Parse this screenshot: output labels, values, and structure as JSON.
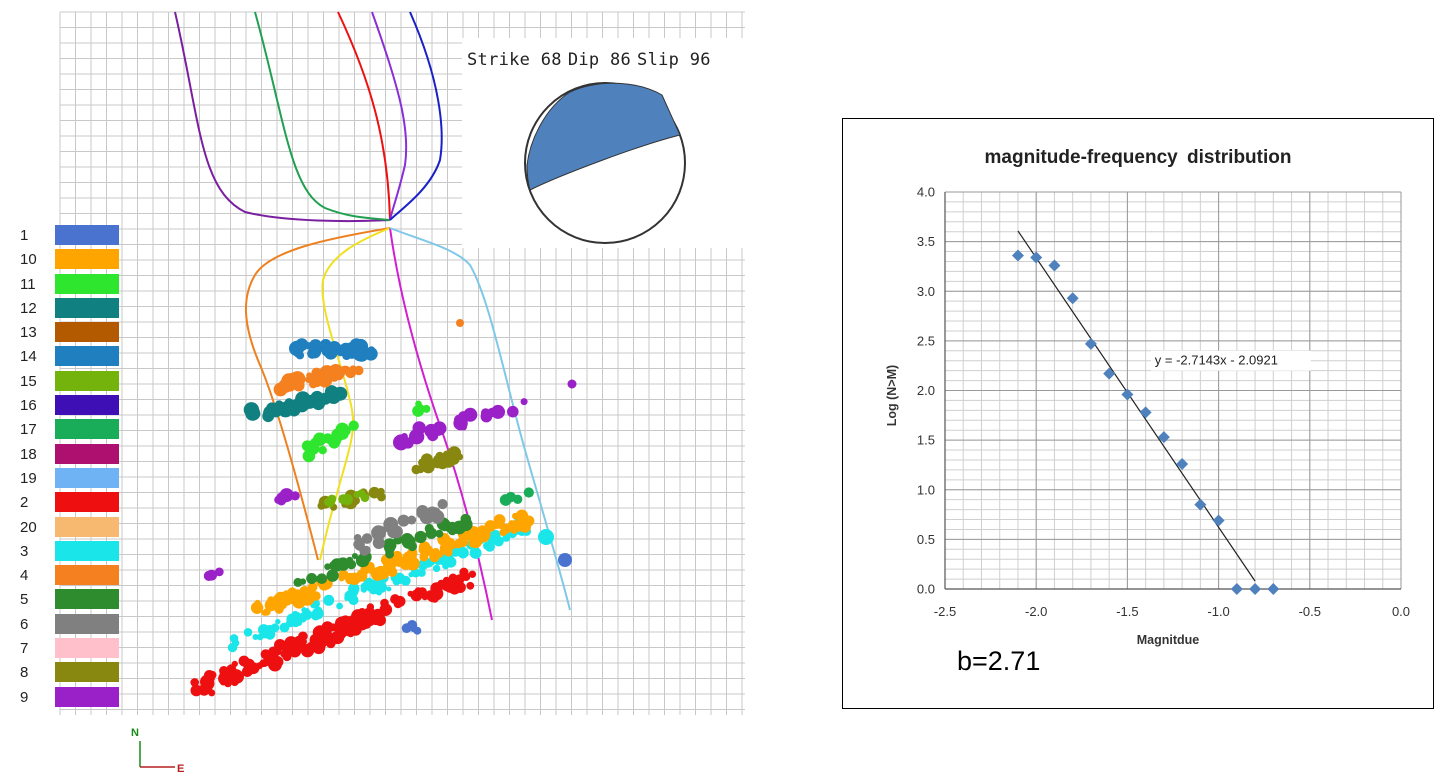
{
  "focal_mechanism": {
    "strike_label": "Strike 68",
    "dip_label": "Dip 86",
    "slip_label": "Slip 96"
  },
  "stage_legend": [
    {
      "label": "1",
      "color": "#4a72cf"
    },
    {
      "label": "10",
      "color": "#ffa500"
    },
    {
      "label": "11",
      "color": "#2ee62e"
    },
    {
      "label": "12",
      "color": "#108080"
    },
    {
      "label": "13",
      "color": "#b35900"
    },
    {
      "label": "14",
      "color": "#1f7fbf"
    },
    {
      "label": "15",
      "color": "#73b30b"
    },
    {
      "label": "16",
      "color": "#3d0fb5"
    },
    {
      "label": "17",
      "color": "#1aad59"
    },
    {
      "label": "18",
      "color": "#ad106e"
    },
    {
      "label": "19",
      "color": "#70b3f5"
    },
    {
      "label": "2",
      "color": "#ee1010"
    },
    {
      "label": "20",
      "color": "#f7b870"
    },
    {
      "label": "3",
      "color": "#1ae6ea"
    },
    {
      "label": "4",
      "color": "#f5801f"
    },
    {
      "label": "5",
      "color": "#2e8b2e"
    },
    {
      "label": "6",
      "color": "#808080"
    },
    {
      "label": "7",
      "color": "#ffc0cb"
    },
    {
      "label": "8",
      "color": "#888810"
    },
    {
      "label": "9",
      "color": "#9a20c8"
    }
  ],
  "compass": {
    "north": "N",
    "east": "E"
  },
  "chart_data": {
    "type": "scatter",
    "title": "magnitude-frequency  distribution",
    "xlabel": "Magnitdue",
    "ylabel": "Log (N>M)",
    "xlim": [
      -2.5,
      0.0
    ],
    "ylim": [
      0.0,
      4.0
    ],
    "x_ticks": [
      "-2.5",
      "-2.0",
      "-1.5",
      "-1.0",
      "-0.5",
      "0.0"
    ],
    "y_ticks": [
      "0.0",
      "0.5",
      "1.0",
      "1.5",
      "2.0",
      "2.5",
      "3.0",
      "3.5",
      "4.0"
    ],
    "grid": true,
    "marker": "diamond",
    "marker_color": "#4f81bd",
    "points": [
      {
        "x": -2.1,
        "y": 3.36
      },
      {
        "x": -2.0,
        "y": 3.34
      },
      {
        "x": -1.9,
        "y": 3.26
      },
      {
        "x": -1.8,
        "y": 2.93
      },
      {
        "x": -1.7,
        "y": 2.47
      },
      {
        "x": -1.6,
        "y": 2.17
      },
      {
        "x": -1.5,
        "y": 1.96
      },
      {
        "x": -1.4,
        "y": 1.78
      },
      {
        "x": -1.3,
        "y": 1.53
      },
      {
        "x": -1.2,
        "y": 1.26
      },
      {
        "x": -1.1,
        "y": 0.85
      },
      {
        "x": -1.0,
        "y": 0.69
      },
      {
        "x": -0.9,
        "y": 0.0
      },
      {
        "x": -0.8,
        "y": 0.0
      },
      {
        "x": -0.7,
        "y": 0.0
      }
    ],
    "trendline": {
      "slope": -2.7143,
      "intercept": -2.0921,
      "x_range": [
        -2.1,
        -0.8
      ],
      "equation_label": "y = -2.7143x - 2.0921"
    },
    "b_value_label": "b=2.71"
  }
}
